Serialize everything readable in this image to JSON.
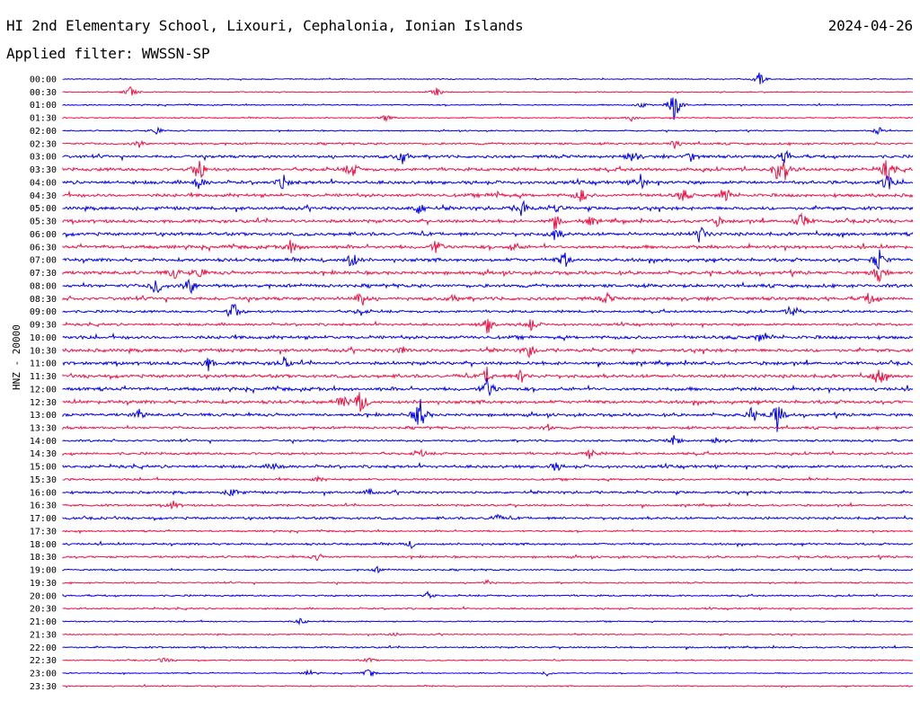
{
  "header": {
    "station": "HI 2nd Elementary School, Lixouri, Cephalonia, Ionian Islands",
    "date": "2024-04-26",
    "filter": "Applied filter: WWSSN-SP"
  },
  "colors": {
    "trace_a": "#0000ee",
    "trace_b": "#ee1144"
  },
  "chart_data": {
    "type": "line",
    "ylabel": "HNZ - 20000",
    "rows": [
      {
        "label": "00:00",
        "color": "blue",
        "activity": 0.5,
        "events": [
          {
            "t": 0.82,
            "a": 8
          }
        ]
      },
      {
        "label": "00:30",
        "color": "red",
        "activity": 0.5,
        "events": [
          {
            "t": 0.08,
            "a": 7
          },
          {
            "t": 0.44,
            "a": 5
          }
        ]
      },
      {
        "label": "01:00",
        "color": "blue",
        "activity": 0.6,
        "events": [
          {
            "t": 0.72,
            "a": 22
          },
          {
            "t": 0.68,
            "a": 4
          }
        ]
      },
      {
        "label": "01:30",
        "color": "red",
        "activity": 0.6,
        "events": [
          {
            "t": 0.38,
            "a": 4
          },
          {
            "t": 0.67,
            "a": 4
          }
        ]
      },
      {
        "label": "02:00",
        "color": "blue",
        "activity": 0.6,
        "events": [
          {
            "t": 0.11,
            "a": 5
          },
          {
            "t": 0.96,
            "a": 6
          }
        ]
      },
      {
        "label": "02:30",
        "color": "red",
        "activity": 1.0,
        "events": [
          {
            "t": 0.09,
            "a": 4
          },
          {
            "t": 0.72,
            "a": 5
          }
        ]
      },
      {
        "label": "03:00",
        "color": "blue",
        "activity": 1.4,
        "events": [
          {
            "t": 0.4,
            "a": 10
          },
          {
            "t": 0.67,
            "a": 9
          },
          {
            "t": 0.74,
            "a": 8
          },
          {
            "t": 0.85,
            "a": 9
          }
        ]
      },
      {
        "label": "03:30",
        "color": "red",
        "activity": 1.6,
        "events": [
          {
            "t": 0.16,
            "a": 16
          },
          {
            "t": 0.34,
            "a": 10
          },
          {
            "t": 0.84,
            "a": 10
          },
          {
            "t": 0.85,
            "a": 12
          },
          {
            "t": 0.97,
            "a": 14
          }
        ]
      },
      {
        "label": "04:00",
        "color": "blue",
        "activity": 1.6,
        "events": [
          {
            "t": 0.16,
            "a": 8
          },
          {
            "t": 0.26,
            "a": 9
          },
          {
            "t": 0.68,
            "a": 10
          },
          {
            "t": 0.97,
            "a": 12
          }
        ]
      },
      {
        "label": "04:30",
        "color": "red",
        "activity": 1.6,
        "events": [
          {
            "t": 0.51,
            "a": 5
          },
          {
            "t": 0.61,
            "a": 9
          },
          {
            "t": 0.73,
            "a": 8
          },
          {
            "t": 0.78,
            "a": 7
          }
        ]
      },
      {
        "label": "05:00",
        "color": "blue",
        "activity": 1.6,
        "events": [
          {
            "t": 0.42,
            "a": 9
          },
          {
            "t": 0.54,
            "a": 12
          },
          {
            "t": 0.58,
            "a": 5
          }
        ]
      },
      {
        "label": "05:30",
        "color": "red",
        "activity": 1.6,
        "events": [
          {
            "t": 0.58,
            "a": 8
          },
          {
            "t": 0.62,
            "a": 5
          },
          {
            "t": 0.77,
            "a": 5
          },
          {
            "t": 0.87,
            "a": 12
          }
        ]
      },
      {
        "label": "06:00",
        "color": "blue",
        "activity": 1.6,
        "events": [
          {
            "t": 0.58,
            "a": 10
          },
          {
            "t": 0.75,
            "a": 12
          }
        ]
      },
      {
        "label": "06:30",
        "color": "red",
        "activity": 1.6,
        "events": [
          {
            "t": 0.27,
            "a": 9
          },
          {
            "t": 0.44,
            "a": 10
          },
          {
            "t": 0.53,
            "a": 6
          }
        ]
      },
      {
        "label": "07:00",
        "color": "blue",
        "activity": 1.6,
        "events": [
          {
            "t": 0.34,
            "a": 12
          },
          {
            "t": 0.59,
            "a": 10
          },
          {
            "t": 0.96,
            "a": 14
          }
        ]
      },
      {
        "label": "07:30",
        "color": "red",
        "activity": 1.6,
        "events": [
          {
            "t": 0.13,
            "a": 8
          },
          {
            "t": 0.16,
            "a": 8
          },
          {
            "t": 0.96,
            "a": 10
          }
        ]
      },
      {
        "label": "08:00",
        "color": "blue",
        "activity": 1.6,
        "events": [
          {
            "t": 0.11,
            "a": 14
          },
          {
            "t": 0.15,
            "a": 12
          }
        ]
      },
      {
        "label": "08:30",
        "color": "red",
        "activity": 1.6,
        "events": [
          {
            "t": 0.35,
            "a": 12
          },
          {
            "t": 0.46,
            "a": 5
          },
          {
            "t": 0.64,
            "a": 6
          },
          {
            "t": 0.95,
            "a": 9
          }
        ]
      },
      {
        "label": "09:00",
        "color": "blue",
        "activity": 1.2,
        "events": [
          {
            "t": 0.2,
            "a": 14
          },
          {
            "t": 0.35,
            "a": 5
          },
          {
            "t": 0.86,
            "a": 11
          }
        ]
      },
      {
        "label": "09:30",
        "color": "red",
        "activity": 1.2,
        "events": [
          {
            "t": 0.5,
            "a": 11
          },
          {
            "t": 0.55,
            "a": 9
          }
        ]
      },
      {
        "label": "10:00",
        "color": "blue",
        "activity": 1.6,
        "events": [
          {
            "t": 0.82,
            "a": 5
          }
        ]
      },
      {
        "label": "10:30",
        "color": "red",
        "activity": 1.6,
        "events": [
          {
            "t": 0.4,
            "a": 5
          },
          {
            "t": 0.55,
            "a": 9
          }
        ]
      },
      {
        "label": "11:00",
        "color": "blue",
        "activity": 1.6,
        "events": [
          {
            "t": 0.17,
            "a": 10
          },
          {
            "t": 0.26,
            "a": 8
          }
        ]
      },
      {
        "label": "11:30",
        "color": "red",
        "activity": 1.6,
        "events": [
          {
            "t": 0.5,
            "a": 12
          },
          {
            "t": 0.54,
            "a": 8
          },
          {
            "t": 0.96,
            "a": 12
          }
        ]
      },
      {
        "label": "12:00",
        "color": "blue",
        "activity": 1.6,
        "events": [
          {
            "t": 0.5,
            "a": 16
          }
        ]
      },
      {
        "label": "12:30",
        "color": "red",
        "activity": 1.6,
        "events": [
          {
            "t": 0.33,
            "a": 8
          },
          {
            "t": 0.35,
            "a": 14
          }
        ]
      },
      {
        "label": "13:00",
        "color": "blue",
        "activity": 1.4,
        "events": [
          {
            "t": 0.09,
            "a": 6
          },
          {
            "t": 0.42,
            "a": 22
          },
          {
            "t": 0.81,
            "a": 8
          },
          {
            "t": 0.84,
            "a": 20
          }
        ]
      },
      {
        "label": "13:30",
        "color": "red",
        "activity": 1.2,
        "events": [
          {
            "t": 0.57,
            "a": 4
          }
        ]
      },
      {
        "label": "14:00",
        "color": "blue",
        "activity": 1.0,
        "events": [
          {
            "t": 0.72,
            "a": 8
          },
          {
            "t": 0.77,
            "a": 4
          }
        ]
      },
      {
        "label": "14:30",
        "color": "red",
        "activity": 1.2,
        "events": [
          {
            "t": 0.42,
            "a": 5
          },
          {
            "t": 0.62,
            "a": 7
          }
        ]
      },
      {
        "label": "15:00",
        "color": "blue",
        "activity": 1.4,
        "events": [
          {
            "t": 0.25,
            "a": 6
          },
          {
            "t": 0.58,
            "a": 6
          }
        ]
      },
      {
        "label": "15:30",
        "color": "red",
        "activity": 1.0,
        "events": [
          {
            "t": 0.3,
            "a": 3
          }
        ]
      },
      {
        "label": "16:00",
        "color": "blue",
        "activity": 1.2,
        "events": [
          {
            "t": 0.2,
            "a": 7
          },
          {
            "t": 0.36,
            "a": 4
          }
        ]
      },
      {
        "label": "16:30",
        "color": "red",
        "activity": 1.0,
        "events": [
          {
            "t": 0.13,
            "a": 5
          }
        ]
      },
      {
        "label": "17:00",
        "color": "blue",
        "activity": 1.2,
        "events": [
          {
            "t": 0.51,
            "a": 5
          }
        ]
      },
      {
        "label": "17:30",
        "color": "red",
        "activity": 0.8,
        "events": []
      },
      {
        "label": "18:00",
        "color": "blue",
        "activity": 1.0,
        "events": [
          {
            "t": 0.41,
            "a": 4
          }
        ]
      },
      {
        "label": "18:30",
        "color": "red",
        "activity": 1.0,
        "events": [
          {
            "t": 0.3,
            "a": 4
          }
        ]
      },
      {
        "label": "19:00",
        "color": "blue",
        "activity": 0.8,
        "events": [
          {
            "t": 0.37,
            "a": 3
          }
        ]
      },
      {
        "label": "19:30",
        "color": "red",
        "activity": 0.7,
        "events": [
          {
            "t": 0.5,
            "a": 3
          }
        ]
      },
      {
        "label": "20:00",
        "color": "blue",
        "activity": 0.8,
        "events": [
          {
            "t": 0.43,
            "a": 4
          }
        ]
      },
      {
        "label": "20:30",
        "color": "red",
        "activity": 0.8,
        "events": []
      },
      {
        "label": "21:00",
        "color": "blue",
        "activity": 0.6,
        "events": [
          {
            "t": 0.28,
            "a": 4
          }
        ]
      },
      {
        "label": "21:30",
        "color": "red",
        "activity": 0.6,
        "events": [
          {
            "t": 0.39,
            "a": 3
          }
        ]
      },
      {
        "label": "22:00",
        "color": "blue",
        "activity": 0.8,
        "events": []
      },
      {
        "label": "22:30",
        "color": "red",
        "activity": 0.6,
        "events": [
          {
            "t": 0.12,
            "a": 4
          },
          {
            "t": 0.36,
            "a": 3
          }
        ]
      },
      {
        "label": "23:00",
        "color": "blue",
        "activity": 0.5,
        "events": [
          {
            "t": 0.29,
            "a": 4
          },
          {
            "t": 0.36,
            "a": 6
          },
          {
            "t": 0.57,
            "a": 3
          }
        ]
      },
      {
        "label": "23:30",
        "color": "red",
        "activity": 0.6,
        "events": []
      }
    ]
  }
}
